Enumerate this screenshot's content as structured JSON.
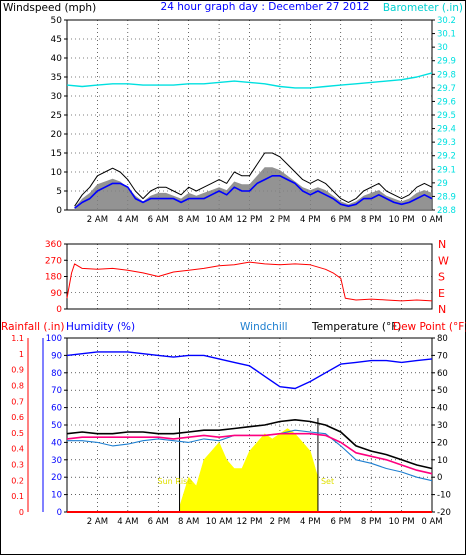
{
  "header": {
    "left_label": "Windspeed (mph)",
    "title": "24 hour graph day : December 27 2012",
    "right_label": "Barometer (.in)"
  },
  "colors": {
    "wind_gust": "#000000",
    "wind_avg": "#0000ff",
    "wind_band": "#808080",
    "barometer": "#00e0e0",
    "wind_dir": "#ff0000",
    "humidity": "#0000ff",
    "temperature": "#000000",
    "windchill": "#1e7fd0",
    "dewpoint": "#ff007f",
    "solar": "#ffff00",
    "rainfall": "#ff0000",
    "frame": "#000000",
    "grid": "#000000"
  },
  "time_labels": [
    "2 AM",
    "4 AM",
    "6 AM",
    "8 AM",
    "10 AM",
    "12 PM",
    "2 PM",
    "4 PM",
    "6 PM",
    "8 PM",
    "10 PM",
    "0 AM"
  ],
  "panels": {
    "wind": {
      "y_ticks": [
        "0",
        "5",
        "10",
        "15",
        "20",
        "25",
        "30",
        "35",
        "40",
        "45",
        "50"
      ],
      "baro_ticks": [
        "28.8",
        "28.9",
        "29",
        "29.1",
        "29.2",
        "29.3",
        "29.4",
        "29.5",
        "29.6",
        "29.7",
        "29.8",
        "29.9",
        "30",
        "30.1",
        "30.2"
      ]
    },
    "direction": {
      "y_ticks": [
        "0",
        "90",
        "180",
        "270",
        "360"
      ],
      "compass": [
        "N",
        "W",
        "S",
        "E",
        "N"
      ]
    },
    "bottom": {
      "labels": {
        "rainfall": "Rainfall (.in)",
        "humidity": "Humidity (%)",
        "windchill": "Windchill",
        "temperature": "Temperature (°F)",
        "dewpoint": "Dew Point (°F)"
      },
      "humidity_ticks": [
        "0",
        "10",
        "20",
        "30",
        "40",
        "50",
        "60",
        "70",
        "80",
        "90",
        "100"
      ],
      "rain_ticks": [
        "0",
        "0.1",
        "0.2",
        "0.3",
        "0.4",
        "0.5",
        "0.6",
        "0.7",
        "0.8",
        "0.9",
        "1",
        "1.1"
      ],
      "temp_ticks": [
        "-20",
        "-10",
        "0",
        "10",
        "20",
        "30",
        "40",
        "50",
        "60",
        "70",
        "80"
      ],
      "sun_rise_label": "Sun Rise",
      "sun_set_label": "Set"
    }
  },
  "chart_data": [
    {
      "type": "line",
      "title": "24 hour graph day : December 27 2012",
      "xlabel": "",
      "ylabel": "Windspeed (mph)",
      "y2label": "Barometer (.in)",
      "ylim": [
        0,
        50
      ],
      "y2lim": [
        28.8,
        30.2
      ],
      "grid": true,
      "series": [
        {
          "name": "Wind Gust",
          "x": [
            0.5,
            1.0,
            1.5,
            2.0,
            2.5,
            3.0,
            3.5,
            4.0,
            4.5,
            5.0,
            5.5,
            6.0,
            6.5,
            7.0,
            7.5,
            8.0,
            8.5,
            9.0,
            9.5,
            10.0,
            10.5,
            11.0,
            11.5,
            12.0,
            12.5,
            13.0,
            13.5,
            14.0,
            14.5,
            15.0,
            15.5,
            16.0,
            16.5,
            17.0,
            17.5,
            18.0,
            18.5,
            19.0,
            19.5,
            20.0,
            20.5,
            21.0,
            21.5,
            22.0,
            22.5,
            23.0,
            23.5,
            24.0
          ],
          "values": [
            1,
            4,
            6,
            9,
            10,
            11,
            10,
            8,
            5,
            3,
            5,
            6,
            6,
            5,
            4,
            6,
            5,
            6,
            7,
            8,
            7,
            10,
            9,
            9,
            12,
            15,
            15,
            14,
            12,
            10,
            8,
            7,
            8,
            7,
            5,
            3,
            2,
            3,
            5,
            6,
            7,
            5,
            4,
            3,
            4,
            6,
            7,
            6
          ]
        },
        {
          "name": "Wind Average",
          "x": [
            0.5,
            1.0,
            1.5,
            2.0,
            2.5,
            3.0,
            3.5,
            4.0,
            4.5,
            5.0,
            5.5,
            6.0,
            6.5,
            7.0,
            7.5,
            8.0,
            8.5,
            9.0,
            9.5,
            10.0,
            10.5,
            11.0,
            11.5,
            12.0,
            12.5,
            13.0,
            13.5,
            14.0,
            14.5,
            15.0,
            15.5,
            16.0,
            16.5,
            17.0,
            17.5,
            18.0,
            18.5,
            19.0,
            19.5,
            20.0,
            20.5,
            21.0,
            21.5,
            22.0,
            22.5,
            23.0,
            23.5,
            24.0
          ],
          "values": [
            0.5,
            2,
            3,
            5,
            6,
            7,
            7,
            6,
            3,
            2,
            3,
            3,
            3,
            3,
            2,
            3,
            3,
            3,
            4,
            5,
            4,
            6,
            5,
            5,
            7,
            8,
            9,
            9,
            8,
            7,
            5,
            4,
            5,
            4,
            3,
            1.5,
            1,
            1.5,
            3,
            3,
            4,
            3,
            2,
            1.5,
            2,
            3,
            4,
            3
          ]
        },
        {
          "name": "Barometer",
          "x": [
            0,
            1,
            2,
            3,
            4,
            5,
            6,
            7,
            8,
            9,
            10,
            11,
            12,
            13,
            14,
            15,
            16,
            17,
            18,
            19,
            20,
            21,
            22,
            23,
            24
          ],
          "values": [
            29.72,
            29.71,
            29.72,
            29.73,
            29.73,
            29.72,
            29.72,
            29.72,
            29.73,
            29.73,
            29.74,
            29.75,
            29.74,
            29.73,
            29.71,
            29.7,
            29.7,
            29.71,
            29.72,
            29.73,
            29.74,
            29.75,
            29.76,
            29.78,
            29.81
          ]
        }
      ]
    },
    {
      "type": "line",
      "title": "",
      "ylabel": "",
      "ylim": [
        0,
        360
      ],
      "y2_labels": [
        "N",
        "W",
        "S",
        "E",
        "N"
      ],
      "grid": true,
      "series": [
        {
          "name": "Wind Direction",
          "x": [
            0,
            0.3,
            0.5,
            1,
            2,
            3,
            4,
            5,
            6,
            7,
            8,
            9,
            10,
            11,
            12,
            13,
            14,
            15,
            16,
            17,
            17.5,
            18,
            18.3,
            19,
            20,
            21,
            22,
            23,
            24
          ],
          "values": [
            60,
            200,
            250,
            225,
            220,
            225,
            215,
            200,
            180,
            205,
            215,
            225,
            240,
            245,
            260,
            250,
            245,
            250,
            245,
            220,
            200,
            170,
            60,
            50,
            55,
            50,
            45,
            50,
            45
          ]
        }
      ]
    },
    {
      "type": "line",
      "title": "",
      "ylabel": "Humidity (%)",
      "y2label": "Temperature (°F)",
      "ylim": [
        0,
        100
      ],
      "y2lim": [
        -20,
        80
      ],
      "grid": true,
      "series": [
        {
          "name": "Humidity",
          "x": [
            0,
            1,
            2,
            3,
            4,
            5,
            6,
            7,
            8,
            9,
            10,
            11,
            12,
            13,
            14,
            15,
            16,
            17,
            18,
            19,
            20,
            21,
            22,
            23,
            24
          ],
          "values": [
            90,
            91,
            92,
            92,
            92,
            91,
            90,
            89,
            90,
            90,
            88,
            86,
            84,
            78,
            72,
            71,
            75,
            80,
            85,
            86,
            87,
            87,
            86,
            87,
            88
          ]
        },
        {
          "name": "Temperature",
          "x": [
            0,
            1,
            2,
            3,
            4,
            5,
            6,
            7,
            8,
            9,
            10,
            11,
            12,
            13,
            14,
            15,
            16,
            17,
            18,
            19,
            20,
            21,
            22,
            23,
            24
          ],
          "values": [
            25,
            26,
            25,
            25,
            26,
            26,
            25,
            25,
            26,
            27,
            27,
            28,
            29,
            30,
            32,
            33,
            32,
            30,
            26,
            18,
            15,
            13,
            10,
            7,
            5
          ]
        },
        {
          "name": "Windchill",
          "x": [
            0,
            1,
            2,
            3,
            4,
            5,
            6,
            7,
            8,
            9,
            10,
            11,
            12,
            13,
            14,
            15,
            16,
            17,
            18,
            19,
            20,
            21,
            22,
            23,
            24
          ],
          "values": [
            21,
            21,
            20,
            18,
            19,
            21,
            22,
            21,
            20,
            22,
            21,
            24,
            24,
            24,
            25,
            27,
            26,
            25,
            18,
            10,
            8,
            5,
            3,
            0,
            -2
          ]
        },
        {
          "name": "Dew Point",
          "x": [
            0,
            1,
            2,
            3,
            4,
            5,
            6,
            7,
            8,
            9,
            10,
            11,
            12,
            13,
            14,
            15,
            16,
            17,
            18,
            19,
            20,
            21,
            22,
            23,
            24
          ],
          "values": [
            22,
            23,
            23,
            23,
            23,
            23,
            23,
            22,
            23,
            24,
            23,
            24,
            24,
            24,
            25,
            25,
            25,
            24,
            20,
            14,
            12,
            10,
            7,
            4,
            2
          ]
        },
        {
          "name": "Solar",
          "x": [
            7.4,
            8,
            8.5,
            9,
            9.5,
            10,
            10.5,
            11,
            11.5,
            12,
            12.5,
            13,
            13.5,
            14,
            14.5,
            15,
            15.5,
            16,
            16.5
          ],
          "values": [
            3,
            20,
            15,
            30,
            35,
            40,
            30,
            25,
            25,
            35,
            40,
            45,
            42,
            45,
            48,
            45,
            40,
            35,
            20
          ]
        },
        {
          "name": "Rainfall",
          "x": [
            0,
            24
          ],
          "values": [
            0,
            0
          ]
        }
      ]
    }
  ]
}
